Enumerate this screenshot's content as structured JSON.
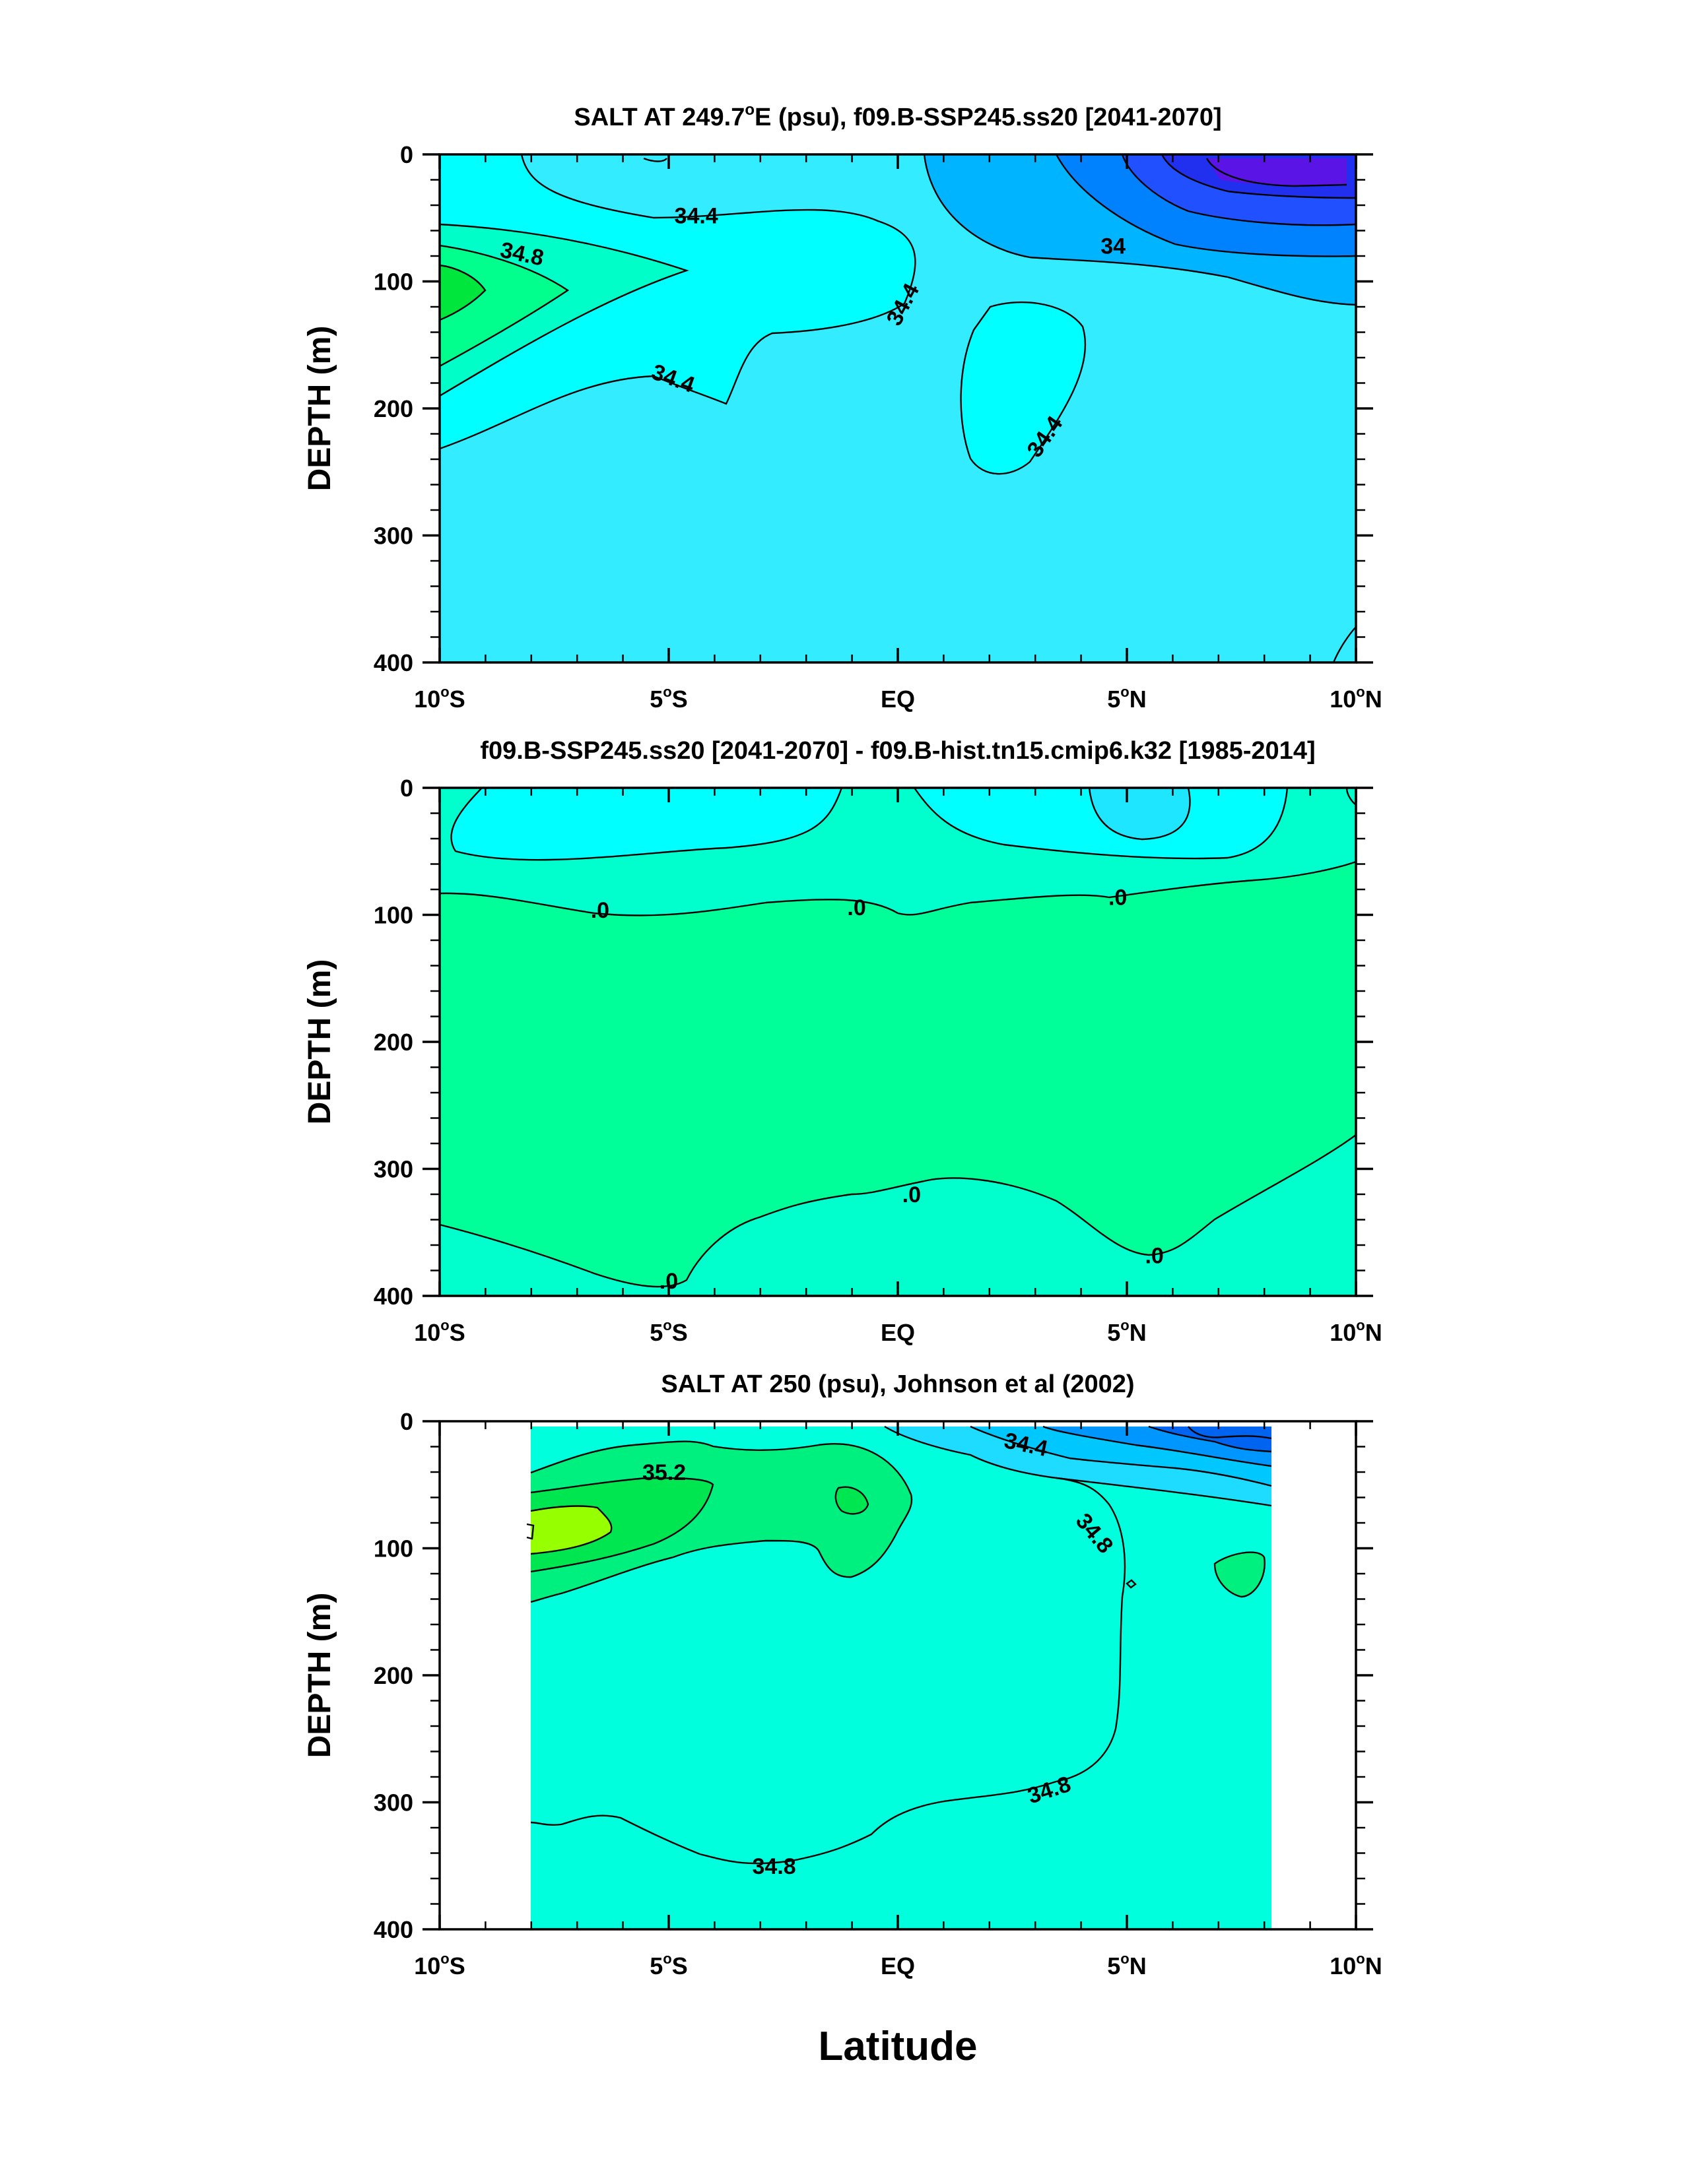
{
  "chart_data": [
    {
      "type": "contour",
      "title": "SALT AT 249.7°E (psu), f09.B-SSP245.ss20 [2041-2070]",
      "title_main": "SALT AT 249.7",
      "title_sup": "o",
      "title_rest": "E (psu), f09.B-SSP245.ss20 [2041-2070]",
      "ylabel": "DEPTH (m)",
      "xlim": [
        -10,
        10
      ],
      "ylim": [
        400,
        0
      ],
      "x_ticks": [
        {
          "v": -10,
          "label": "10",
          "suffix": "S"
        },
        {
          "v": -5,
          "label": "5",
          "suffix": "S"
        },
        {
          "v": 0,
          "label": "EQ",
          "suffix": ""
        },
        {
          "v": 5,
          "label": "5",
          "suffix": "N"
        },
        {
          "v": 10,
          "label": "10",
          "suffix": "N"
        }
      ],
      "y_ticks": [
        0,
        100,
        200,
        300,
        400
      ],
      "contour_labels": [
        {
          "text": "34.4",
          "lat": -4.4,
          "depth": 48,
          "rot": 0
        },
        {
          "text": "34.8",
          "lat": -8.2,
          "depth": 78,
          "rot": 12
        },
        {
          "text": "34",
          "lat": 4.7,
          "depth": 72,
          "rot": 0
        },
        {
          "text": "34.4",
          "lat": 0.1,
          "depth": 118,
          "rot": -62
        },
        {
          "text": "34.4",
          "lat": -4.9,
          "depth": 176,
          "rot": 20
        },
        {
          "text": "34.4",
          "lat": 3.2,
          "depth": 222,
          "rot": -55
        }
      ],
      "fill_colors": [
        "#34ecff",
        "#00ffff",
        "#00ffc8",
        "#00ff8c",
        "#00e63c",
        "#00b4ff",
        "#0082ff",
        "#2050ff",
        "#2030ee",
        "#5a14e6"
      ]
    },
    {
      "type": "contour",
      "title": "f09.B-SSP245.ss20 [2041-2070] - f09.B-hist.tn15.cmip6.k32 [1985-2014]",
      "ylabel": "DEPTH (m)",
      "xlim": [
        -10,
        10
      ],
      "ylim": [
        400,
        0
      ],
      "x_ticks": [
        {
          "v": -10,
          "label": "10",
          "suffix": "S"
        },
        {
          "v": -5,
          "label": "5",
          "suffix": "S"
        },
        {
          "v": 0,
          "label": "EQ",
          "suffix": ""
        },
        {
          "v": 5,
          "label": "5",
          "suffix": "N"
        },
        {
          "v": 10,
          "label": "10",
          "suffix": "N"
        }
      ],
      "y_ticks": [
        0,
        100,
        200,
        300,
        400
      ],
      "contour_labels": [
        {
          "text": ".0",
          "lat": -6.5,
          "depth": 96,
          "rot": 0
        },
        {
          "text": ".0",
          "lat": -0.9,
          "depth": 94,
          "rot": 0
        },
        {
          "text": ".0",
          "lat": 4.8,
          "depth": 86,
          "rot": 0
        },
        {
          "text": ".0",
          "lat": 0.3,
          "depth": 320,
          "rot": 0
        },
        {
          "text": ".0",
          "lat": 5.6,
          "depth": 368,
          "rot": 0
        },
        {
          "text": ".0",
          "lat": -5.0,
          "depth": 388,
          "rot": 0
        }
      ],
      "fill_colors": [
        "#00ffcc",
        "#00ff99",
        "#00ffff",
        "#1ee6ff"
      ]
    },
    {
      "type": "contour",
      "title": "SALT AT 250 (psu), Johnson et al (2002)",
      "ylabel": "DEPTH (m)",
      "xlabel": "Latitude",
      "xlim": [
        -10,
        10
      ],
      "ylim": [
        400,
        0
      ],
      "data_lat_range": [
        -8,
        8.2
      ],
      "x_ticks": [
        {
          "v": -10,
          "label": "10",
          "suffix": "S"
        },
        {
          "v": -5,
          "label": "5",
          "suffix": "S"
        },
        {
          "v": 0,
          "label": "EQ",
          "suffix": ""
        },
        {
          "v": 5,
          "label": "5",
          "suffix": "N"
        },
        {
          "v": 10,
          "label": "10",
          "suffix": "N"
        }
      ],
      "y_ticks": [
        0,
        100,
        200,
        300,
        400
      ],
      "contour_labels": [
        {
          "text": "35.2",
          "lat": -5.1,
          "depth": 40,
          "rot": 0
        },
        {
          "text": "34.4",
          "lat": 2.8,
          "depth": 18,
          "rot": 12
        },
        {
          "text": "34.8",
          "lat": 4.3,
          "depth": 88,
          "rot": 50
        },
        {
          "text": "34.8",
          "lat": 3.3,
          "depth": 290,
          "rot": -18
        },
        {
          "text": "34.8",
          "lat": -2.7,
          "depth": 350,
          "rot": 0
        }
      ],
      "fill_colors": [
        "#00ffdc",
        "#00f080",
        "#00e650",
        "#96ff00",
        "#1edcff",
        "#00c8ff",
        "#0096ff",
        "#0064f0"
      ]
    }
  ]
}
